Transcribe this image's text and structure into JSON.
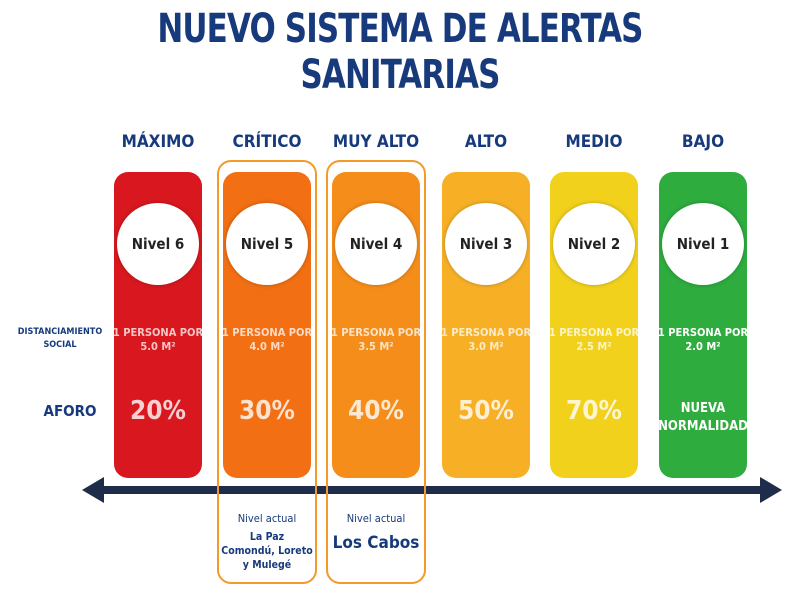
{
  "title": "NUEVO SISTEMA DE ALERTAS SANITARIAS",
  "row_labels": {
    "distancing": [
      "DISTANCIAMIENTO",
      "SOCIAL"
    ],
    "capacity": "AFORO"
  },
  "levels": [
    {
      "name": "MÁXIMO",
      "badge": "Nivel 6",
      "distancing": [
        "1 PERSONA POR",
        "5.0 M²"
      ],
      "capacity": [
        "20%"
      ],
      "color": "#d8181e"
    },
    {
      "name": "CRÍTICO",
      "badge": "Nivel 5",
      "distancing": [
        "1 PERSONA POR",
        "4.0 M²"
      ],
      "capacity": [
        "30%"
      ],
      "color": "#f26f14",
      "current": {
        "label": "Nivel actual",
        "places": [
          "La Paz",
          "Comondú, Loreto",
          "y Mulegé"
        ]
      }
    },
    {
      "name": "MUY ALTO",
      "badge": "Nivel 4",
      "distancing": [
        "1 PERSONA POR",
        "3.5 M²"
      ],
      "capacity": [
        "40%"
      ],
      "color": "#f58d1b",
      "current": {
        "label": "Nivel actual",
        "places": [
          "Los Cabos"
        ]
      }
    },
    {
      "name": "ALTO",
      "badge": "Nivel 3",
      "distancing": [
        "1 PERSONA POR",
        "3.0 M²"
      ],
      "capacity": [
        "50%"
      ],
      "color": "#f7b026"
    },
    {
      "name": "MEDIO",
      "badge": "Nivel 2",
      "distancing": [
        "1 PERSONA POR",
        "2.5 M²"
      ],
      "capacity": [
        "70%"
      ],
      "color": "#f2d11d"
    },
    {
      "name": "BAJO",
      "badge": "Nivel 1",
      "distancing": [
        "1 PERSONA POR",
        "2.0 M²"
      ],
      "capacity": [
        "NUEVA",
        "NORMALIDAD"
      ],
      "color": "#2eac3e"
    }
  ]
}
